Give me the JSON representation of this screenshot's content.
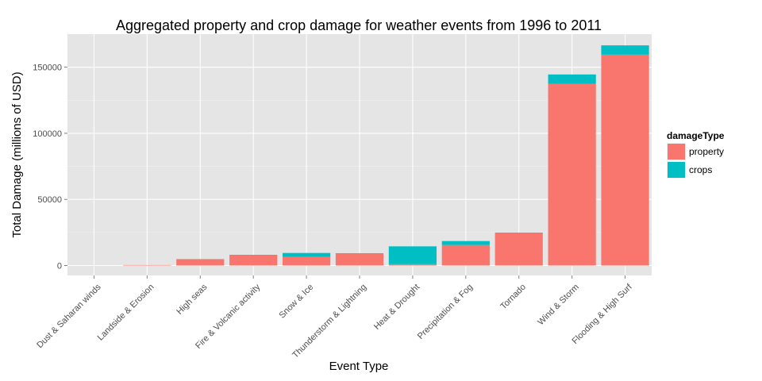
{
  "chart_data": {
    "type": "bar",
    "stacked": true,
    "title": "Aggregated property and crop damage for weather events from 1996 to 2011",
    "xlabel": "Event Type",
    "ylabel": "Total Damage (millions of USD)",
    "ylim": [
      -7500,
      175000
    ],
    "yticks": [
      0,
      50000,
      100000,
      150000
    ],
    "ytick_labels": [
      "0",
      "50000",
      "100000",
      "150000"
    ],
    "grid": true,
    "legend": {
      "title": "damageType",
      "position": "right",
      "entries": [
        "property",
        "crops"
      ]
    },
    "categories": [
      "Dust & Saharan winds",
      "Landside & Erosion",
      "High seas",
      "Fire & Volcanic activity",
      "Snow & Ice",
      "Thunderstorm & Lightning",
      "Heat & Drought",
      "Precipitation & Fog",
      "Tornado",
      "Wind & Storm",
      "Flooding & High Surf"
    ],
    "series": [
      {
        "name": "property",
        "color": "#F8766D",
        "values": [
          6,
          330,
          4800,
          7700,
          6500,
          8700,
          1000,
          15500,
          24500,
          137500,
          159500
        ]
      },
      {
        "name": "crops",
        "color": "#00BFC4",
        "values": [
          3,
          20,
          50,
          400,
          3000,
          500,
          13500,
          3000,
          400,
          7000,
          7000
        ]
      }
    ]
  }
}
